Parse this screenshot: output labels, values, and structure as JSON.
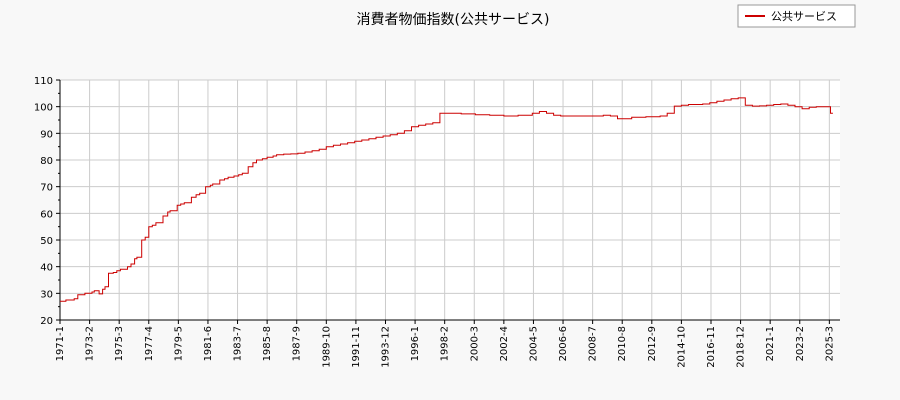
{
  "chart_data": {
    "type": "line",
    "title": "消費者物価指数(公共サービス)",
    "xlabel": "",
    "ylabel": "",
    "ylim": [
      20,
      110
    ],
    "yticks": [
      20,
      30,
      40,
      50,
      60,
      70,
      80,
      90,
      100,
      110
    ],
    "xlim": [
      "1971-01",
      "2025-12"
    ],
    "xticks": [
      "1971-1",
      "1973-2",
      "1975-3",
      "1977-4",
      "1979-5",
      "1981-6",
      "1983-7",
      "1985-8",
      "1987-9",
      "1989-10",
      "1991-11",
      "1993-12",
      "1996-1",
      "1998-2",
      "2000-3",
      "2002-4",
      "2004-5",
      "2006-6",
      "2008-7",
      "2010-8",
      "2012-9",
      "2014-10",
      "2016-11",
      "2018-12",
      "2021-1",
      "2023-2",
      "2025-3"
    ],
    "grid": true,
    "legend": {
      "position": "top-right",
      "entries": [
        "公共サービス"
      ]
    },
    "colors": {
      "series": "#cc0000",
      "grid": "#cccccc",
      "background": "#f8f8f8",
      "plot_background": "#ffffff"
    },
    "series": [
      {
        "name": "公共サービス",
        "x": [
          "1971-01",
          "1971-06",
          "1972-01",
          "1972-04",
          "1972-10",
          "1973-04",
          "1973-06",
          "1973-10",
          "1974-01",
          "1974-03",
          "1974-06",
          "1974-10",
          "1975-01",
          "1975-04",
          "1975-06",
          "1975-10",
          "1976-01",
          "1976-04",
          "1976-06",
          "1976-10",
          "1977-01",
          "1977-04",
          "1977-07",
          "1977-10",
          "1978-04",
          "1978-08",
          "1978-10",
          "1979-04",
          "1979-07",
          "1979-10",
          "1980-04",
          "1980-08",
          "1980-11",
          "1981-04",
          "1981-08",
          "1981-10",
          "1982-04",
          "1982-08",
          "1982-11",
          "1983-04",
          "1983-08",
          "1983-11",
          "1984-04",
          "1984-08",
          "1984-11",
          "1985-04",
          "1985-08",
          "1986-01",
          "1986-04",
          "1986-10",
          "1987-04",
          "1987-10",
          "1988-04",
          "1988-10",
          "1989-04",
          "1989-10",
          "1990-04",
          "1990-10",
          "1991-04",
          "1991-10",
          "1992-04",
          "1992-10",
          "1993-04",
          "1993-10",
          "1994-04",
          "1994-10",
          "1995-04",
          "1995-10",
          "1996-04",
          "1996-10",
          "1997-04",
          "1997-10",
          "1998-06",
          "1999-04",
          "2000-04",
          "2001-04",
          "2002-04",
          "2003-04",
          "2004-04",
          "2004-10",
          "2005-04",
          "2005-10",
          "2006-04",
          "2007-04",
          "2008-04",
          "2009-04",
          "2009-10",
          "2010-04",
          "2010-10",
          "2011-04",
          "2012-04",
          "2013-04",
          "2013-10",
          "2014-04",
          "2014-10",
          "2015-04",
          "2016-04",
          "2016-10",
          "2017-04",
          "2017-10",
          "2018-04",
          "2018-10",
          "2019-04",
          "2019-10",
          "2020-04",
          "2020-10",
          "2021-04",
          "2021-10",
          "2022-04",
          "2022-10",
          "2023-04",
          "2023-10",
          "2024-04",
          "2024-10",
          "2025-04",
          "2025-06"
        ],
        "values": [
          27,
          27.5,
          28,
          29.5,
          30,
          30.5,
          31,
          29.8,
          31.5,
          32.5,
          37.5,
          37.8,
          38.5,
          39,
          39,
          40,
          41,
          43,
          43.5,
          50,
          51,
          55,
          55.5,
          56.5,
          59,
          60.5,
          61,
          63,
          63.5,
          64,
          66,
          67,
          67.5,
          70,
          70.5,
          71,
          72.5,
          73,
          73.5,
          74,
          74.5,
          75,
          77.5,
          79,
          80,
          80.5,
          81,
          81.5,
          82,
          82.2,
          82.3,
          82.5,
          83,
          83.5,
          84,
          85,
          85.5,
          86,
          86.5,
          87,
          87.5,
          88,
          88.5,
          89,
          89.5,
          90,
          91,
          92.5,
          93,
          93.5,
          94,
          97.5,
          97.5,
          97.3,
          97,
          96.8,
          96.5,
          96.8,
          97.5,
          98.2,
          97.5,
          96.8,
          96.5,
          96.5,
          96.5,
          96.8,
          96.5,
          95.5,
          95.5,
          96,
          96.2,
          96.5,
          97.5,
          100.2,
          100.5,
          100.8,
          101,
          101.5,
          102,
          102.5,
          103,
          103.3,
          100.5,
          100.2,
          100.3,
          100.5,
          100.8,
          101,
          100.5,
          100,
          99.2,
          99.8,
          100,
          100,
          97.5,
          97.5
        ]
      }
    ]
  }
}
